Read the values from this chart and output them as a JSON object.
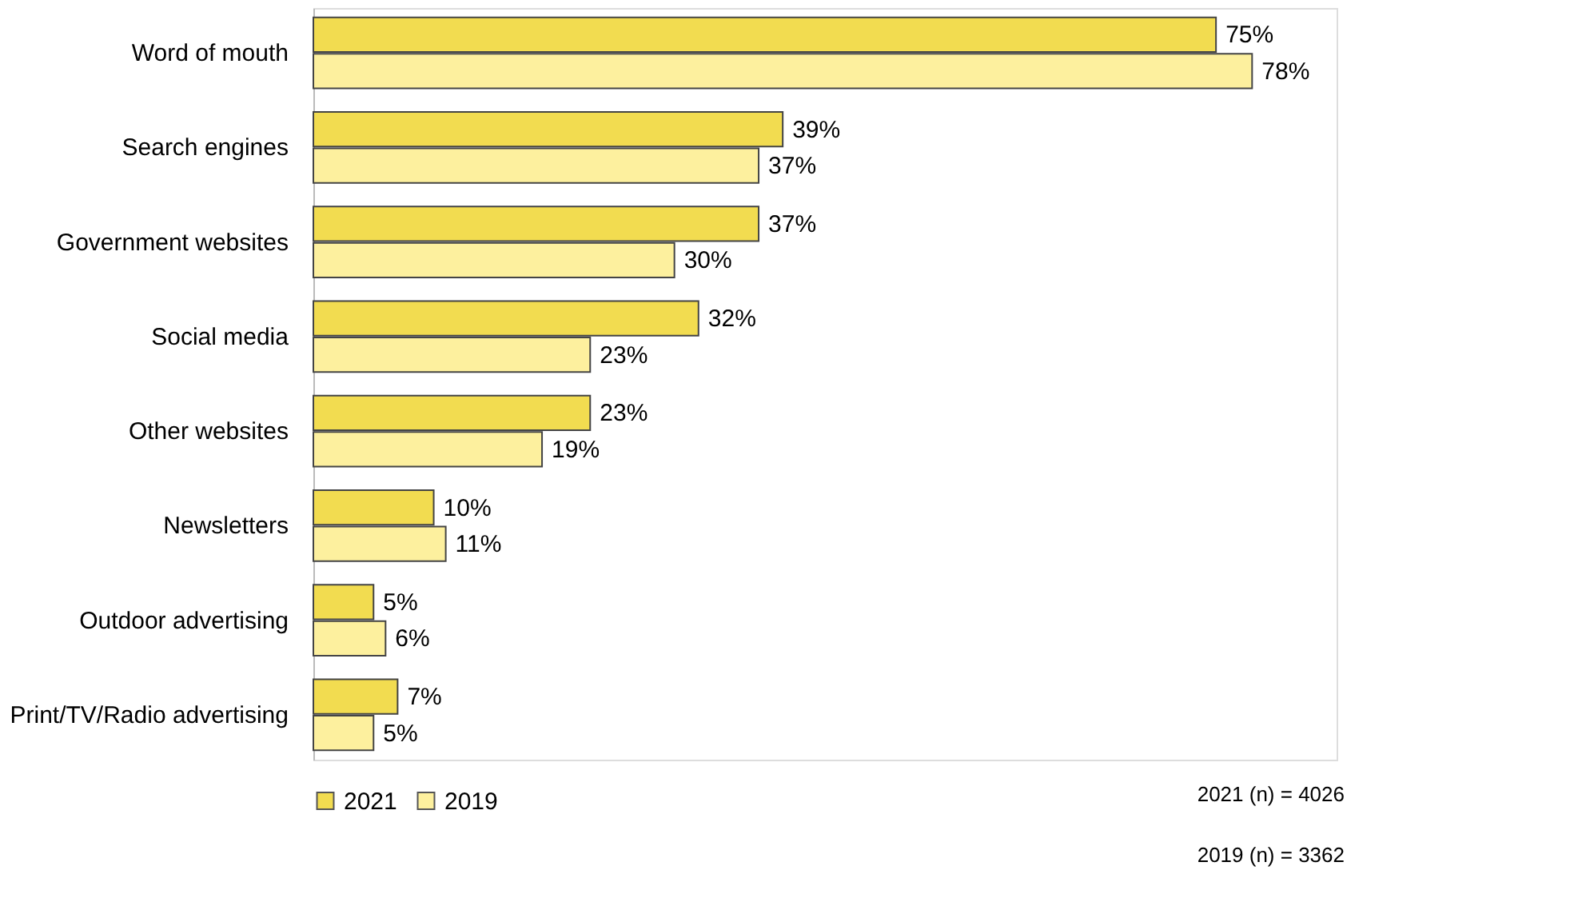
{
  "chart_data": {
    "type": "bar",
    "orientation": "horizontal",
    "categories": [
      "Word of mouth",
      "Search engines",
      "Government websites",
      "Social media",
      "Other websites",
      "Newsletters",
      "Outdoor advertising",
      "Print/TV/Radio advertising"
    ],
    "series": [
      {
        "name": "2021",
        "color": "#f2dc50",
        "values": [
          75,
          39,
          37,
          32,
          23,
          10,
          5,
          7
        ],
        "value_labels": [
          "75%",
          "39%",
          "37%",
          "32%",
          "23%",
          "10%",
          "5%",
          "7%"
        ]
      },
      {
        "name": "2019",
        "color": "#fdf09e",
        "values": [
          78,
          37,
          30,
          23,
          19,
          11,
          6,
          5
        ],
        "value_labels": [
          "78%",
          "37%",
          "30%",
          "23%",
          "19%",
          "11%",
          "6%",
          "5%"
        ]
      }
    ],
    "legend": "bottom",
    "grid": false,
    "annotations": [
      "2021 (n) = 4026",
      "2019 (n) = 3362"
    ]
  }
}
